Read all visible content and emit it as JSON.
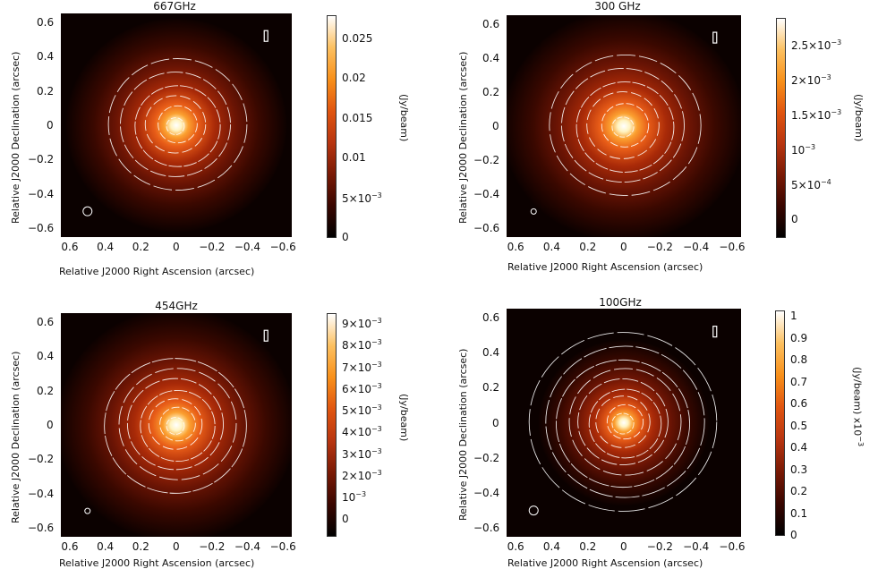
{
  "colors": {
    "cmap": [
      "#000000",
      "#3a0600",
      "#7a1a05",
      "#b83510",
      "#e05510",
      "#f8901a",
      "#fcc060",
      "#ffffff"
    ],
    "contour": "#ffffff"
  },
  "axis_labels": {
    "ylabel": "Relative J2000 Declination (arcsec)",
    "xlabel": "Relative J2000 Right Ascension (arcsec)",
    "cbar_unit": "(Jy/beam)"
  },
  "chart_data": [
    {
      "type": "heatmap",
      "title": "667GHz",
      "xlabel": "Relative J2000 Right Ascension (arcsec)",
      "ylabel": "Relative J2000 Declination (arcsec)",
      "xlim": [
        0.65,
        -0.65
      ],
      "ylim": [
        -0.65,
        0.65
      ],
      "xticks": [
        "0.6",
        "0.4",
        "0.2",
        "0",
        "−0.2",
        "−0.4",
        "−0.6"
      ],
      "yticks": [
        "0.6",
        "0.4",
        "0.2",
        "0",
        "−0.2",
        "−0.4",
        "−0.6"
      ],
      "colorbar": {
        "label": "(Jy/beam)",
        "range": [
          0,
          0.028
        ],
        "ticks": [
          {
            "v": 0.025,
            "t": "0.025"
          },
          {
            "v": 0.02,
            "t": "0.02"
          },
          {
            "v": 0.015,
            "t": "0.015"
          },
          {
            "v": 0.01,
            "t": "0.01"
          },
          {
            "v": 0.005,
            "t": "5×10",
            "e": "−3"
          },
          {
            "v": 0,
            "t": "0"
          }
        ]
      },
      "contour_rings": [
        0.05,
        0.11,
        0.17,
        0.24,
        0.31,
        0.39
      ],
      "outer_glow": 0.46
    },
    {
      "type": "heatmap",
      "title": "300 GHz",
      "xlabel": "Relative J2000 Right Ascension (arcsec)",
      "ylabel": "Relative J2000 Declination (arcsec)",
      "xlim": [
        0.65,
        -0.65
      ],
      "ylim": [
        -0.65,
        0.65
      ],
      "xticks": [
        "0.6",
        "0.4",
        "0.2",
        "0",
        "−0.2",
        "−0.4",
        "−0.6"
      ],
      "yticks": [
        "0.6",
        "0.4",
        "0.2",
        "0",
        "−0.2",
        "−0.4",
        "−0.6"
      ],
      "colorbar": {
        "label": "(Jy/beam)",
        "range": [
          -0.00025,
          0.0029
        ],
        "ticks": [
          {
            "v": 0.0025,
            "t": "2.5×10",
            "e": "−3"
          },
          {
            "v": 0.002,
            "t": "2×10",
            "e": "−3"
          },
          {
            "v": 0.0015,
            "t": "1.5×10",
            "e": "−3"
          },
          {
            "v": 0.001,
            "t": "10",
            "e": "−3"
          },
          {
            "v": 0.0005,
            "t": "5×10",
            "e": "−4"
          },
          {
            "v": 0,
            "t": "0"
          }
        ]
      },
      "contour_rings": [
        0.06,
        0.13,
        0.2,
        0.27,
        0.34,
        0.42
      ],
      "outer_glow": 0.5
    },
    {
      "type": "heatmap",
      "title": "454GHz",
      "xlabel": "Relative J2000 Right Ascension (arcsec)",
      "ylabel": "Relative J2000 Declination (arcsec)",
      "xlim": [
        0.65,
        -0.65
      ],
      "ylim": [
        -0.65,
        0.65
      ],
      "xticks": [
        "0.6",
        "0.4",
        "0.2",
        "0",
        "−0.2",
        "−0.4",
        "−0.6"
      ],
      "yticks": [
        "0.6",
        "0.4",
        "0.2",
        "0",
        "−0.2",
        "−0.4",
        "−0.6"
      ],
      "colorbar": {
        "label": "(Jy/beam)",
        "range": [
          -0.0008,
          0.0095
        ],
        "ticks": [
          {
            "v": 0.009,
            "t": "9×10",
            "e": "−3"
          },
          {
            "v": 0.008,
            "t": "8×10",
            "e": "−3"
          },
          {
            "v": 0.007,
            "t": "7×10",
            "e": "−3"
          },
          {
            "v": 0.006,
            "t": "6×10",
            "e": "−3"
          },
          {
            "v": 0.005,
            "t": "5×10",
            "e": "−3"
          },
          {
            "v": 0.004,
            "t": "4×10",
            "e": "−3"
          },
          {
            "v": 0.003,
            "t": "3×10",
            "e": "−3"
          },
          {
            "v": 0.002,
            "t": "2×10",
            "e": "−3"
          },
          {
            "v": 0.001,
            "t": "10",
            "e": "−3"
          },
          {
            "v": 0,
            "t": "0"
          }
        ]
      },
      "contour_rings": [
        0.05,
        0.1,
        0.15,
        0.21,
        0.27,
        0.33,
        0.4
      ],
      "outer_glow": 0.5
    },
    {
      "type": "heatmap",
      "title": "100GHz",
      "xlabel": "Relative J2000 Right Ascension (arcsec)",
      "ylabel": "Relative J2000 Declination (arcsec)",
      "xlim": [
        0.65,
        -0.65
      ],
      "ylim": [
        -0.65,
        0.65
      ],
      "xticks": [
        "0.6",
        "0.4",
        "0.2",
        "0",
        "−0.2",
        "−0.4",
        "−0.6"
      ],
      "yticks": [
        "0.6",
        "0.4",
        "0.2",
        "0",
        "−0.2",
        "−0.4",
        "−0.6"
      ],
      "colorbar": {
        "label": "(Jy/beam) x10",
        "label_exp": "−3",
        "range": [
          0,
          1.03
        ],
        "ticks": [
          {
            "v": 1,
            "t": "1"
          },
          {
            "v": 0.9,
            "t": "0.9"
          },
          {
            "v": 0.8,
            "t": "0.8"
          },
          {
            "v": 0.7,
            "t": "0.7"
          },
          {
            "v": 0.6,
            "t": "0.6"
          },
          {
            "v": 0.5,
            "t": "0.5"
          },
          {
            "v": 0.4,
            "t": "0.4"
          },
          {
            "v": 0.3,
            "t": "0.3"
          },
          {
            "v": 0.2,
            "t": "0.2"
          },
          {
            "v": 0.1,
            "t": "0.1"
          },
          {
            "v": 0,
            "t": "0"
          }
        ]
      },
      "contour_rings": [
        0.06,
        0.1,
        0.15,
        0.2,
        0.25,
        0.31,
        0.37,
        0.44,
        0.52
      ],
      "outer_glow": 0.35
    }
  ]
}
